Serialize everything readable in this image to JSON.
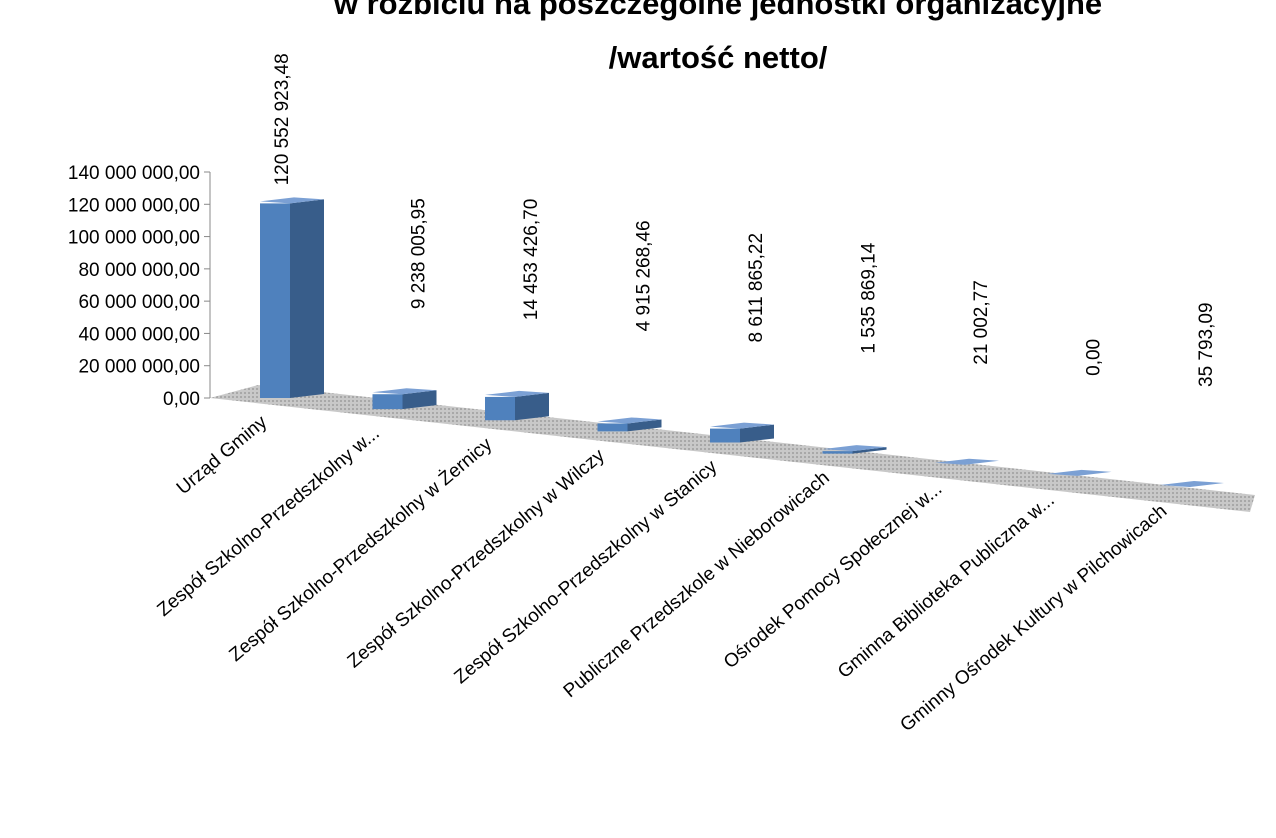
{
  "chart_data": {
    "type": "bar",
    "title": [
      "w rozbiciu na poszczególne jednostki organizacyjne",
      "/wartość netto/"
    ],
    "categories": [
      "Urząd Gminy",
      "Zespół Szkolno-Przedszkolny w...",
      "Zespół Szkolno-Przedszkolny w Żernicy",
      "Zespół Szkolno-Przedszkolny w Wilczy",
      "Zespół Szkolno-Przedszkolny w Stanicy",
      "Publiczne Przedszkole w Nieborowicach",
      "Ośrodek Pomocy Społecznej w...",
      "Gminna Biblioteka Publiczna w...",
      "Gminny Ośrodek Kultury w Pilchowicach"
    ],
    "values": [
      120552923.48,
      9238005.95,
      14453426.7,
      4915268.46,
      8611865.22,
      1535869.14,
      21002.77,
      0,
      35793.09
    ],
    "value_labels": [
      "120 552 923,48",
      "9 238 005,95",
      "14 453 426,70",
      "4 915 268,46",
      "8 611 865,22",
      "1 535 869,14",
      "21 002,77",
      "0,00",
      "35 793,09"
    ],
    "color": "#4f81bd",
    "ylim": [
      0,
      140000000
    ],
    "yticks": [
      {
        "value": 0,
        "label": "0,00"
      },
      {
        "value": 20000000,
        "label": "20 000 000,00"
      },
      {
        "value": 40000000,
        "label": "40 000 000,00"
      },
      {
        "value": 60000000,
        "label": "60 000 000,00"
      },
      {
        "value": 80000000,
        "label": "80 000 000,00"
      },
      {
        "value": 100000000,
        "label": "100 000 000,00"
      },
      {
        "value": 120000000,
        "label": "120 000 000,00"
      },
      {
        "value": 140000000,
        "label": "140 000 000,00"
      }
    ]
  }
}
